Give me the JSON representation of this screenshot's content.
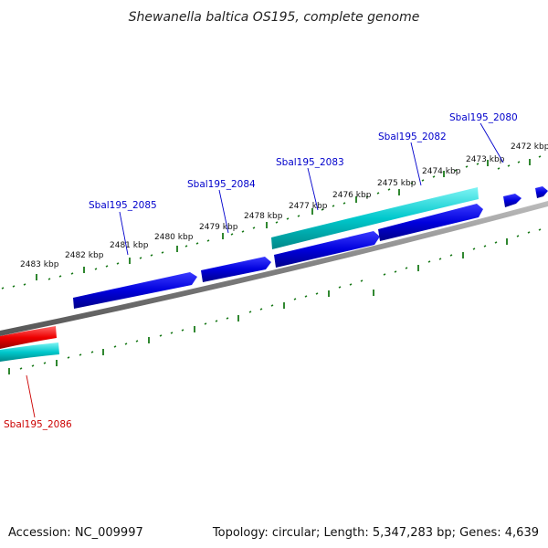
{
  "title": "Shewanella baltica OS195, complete genome",
  "footer": {
    "accession": "Accession: NC_009997",
    "topology": "Topology: circular; Length: 5,347,283 bp; Genes: 4,639"
  },
  "colors": {
    "backbone": "#8a8a8a",
    "tick": "#1a7a1a",
    "gene_forward": "#0000dd",
    "gene_cds_rna": "#00c0c8",
    "gene_reverse": "#ee0000",
    "label_blue": "#0000cc",
    "label_red": "#cc0000"
  },
  "tick_labels": [
    {
      "text": "2483 kbp"
    },
    {
      "text": "2482 kbp"
    },
    {
      "text": "2481 kbp"
    },
    {
      "text": "2480 kbp"
    },
    {
      "text": "2479 kbp"
    },
    {
      "text": "2478 kbp"
    },
    {
      "text": "2477 kbp"
    },
    {
      "text": "2476 kbp"
    },
    {
      "text": "2475 kbp"
    },
    {
      "text": "2474 kbp"
    },
    {
      "text": "2473 kbp"
    },
    {
      "text": "2472 kbp"
    }
  ],
  "gene_labels": [
    {
      "text": "Sbal195_2085",
      "color": "label_blue"
    },
    {
      "text": "Sbal195_2084",
      "color": "label_blue"
    },
    {
      "text": "Sbal195_2083",
      "color": "label_blue"
    },
    {
      "text": "Sbal195_2082",
      "color": "label_blue"
    },
    {
      "text": "Sbal195_2080",
      "color": "label_blue"
    },
    {
      "text": "Sbal195_2086",
      "color": "label_red"
    }
  ]
}
